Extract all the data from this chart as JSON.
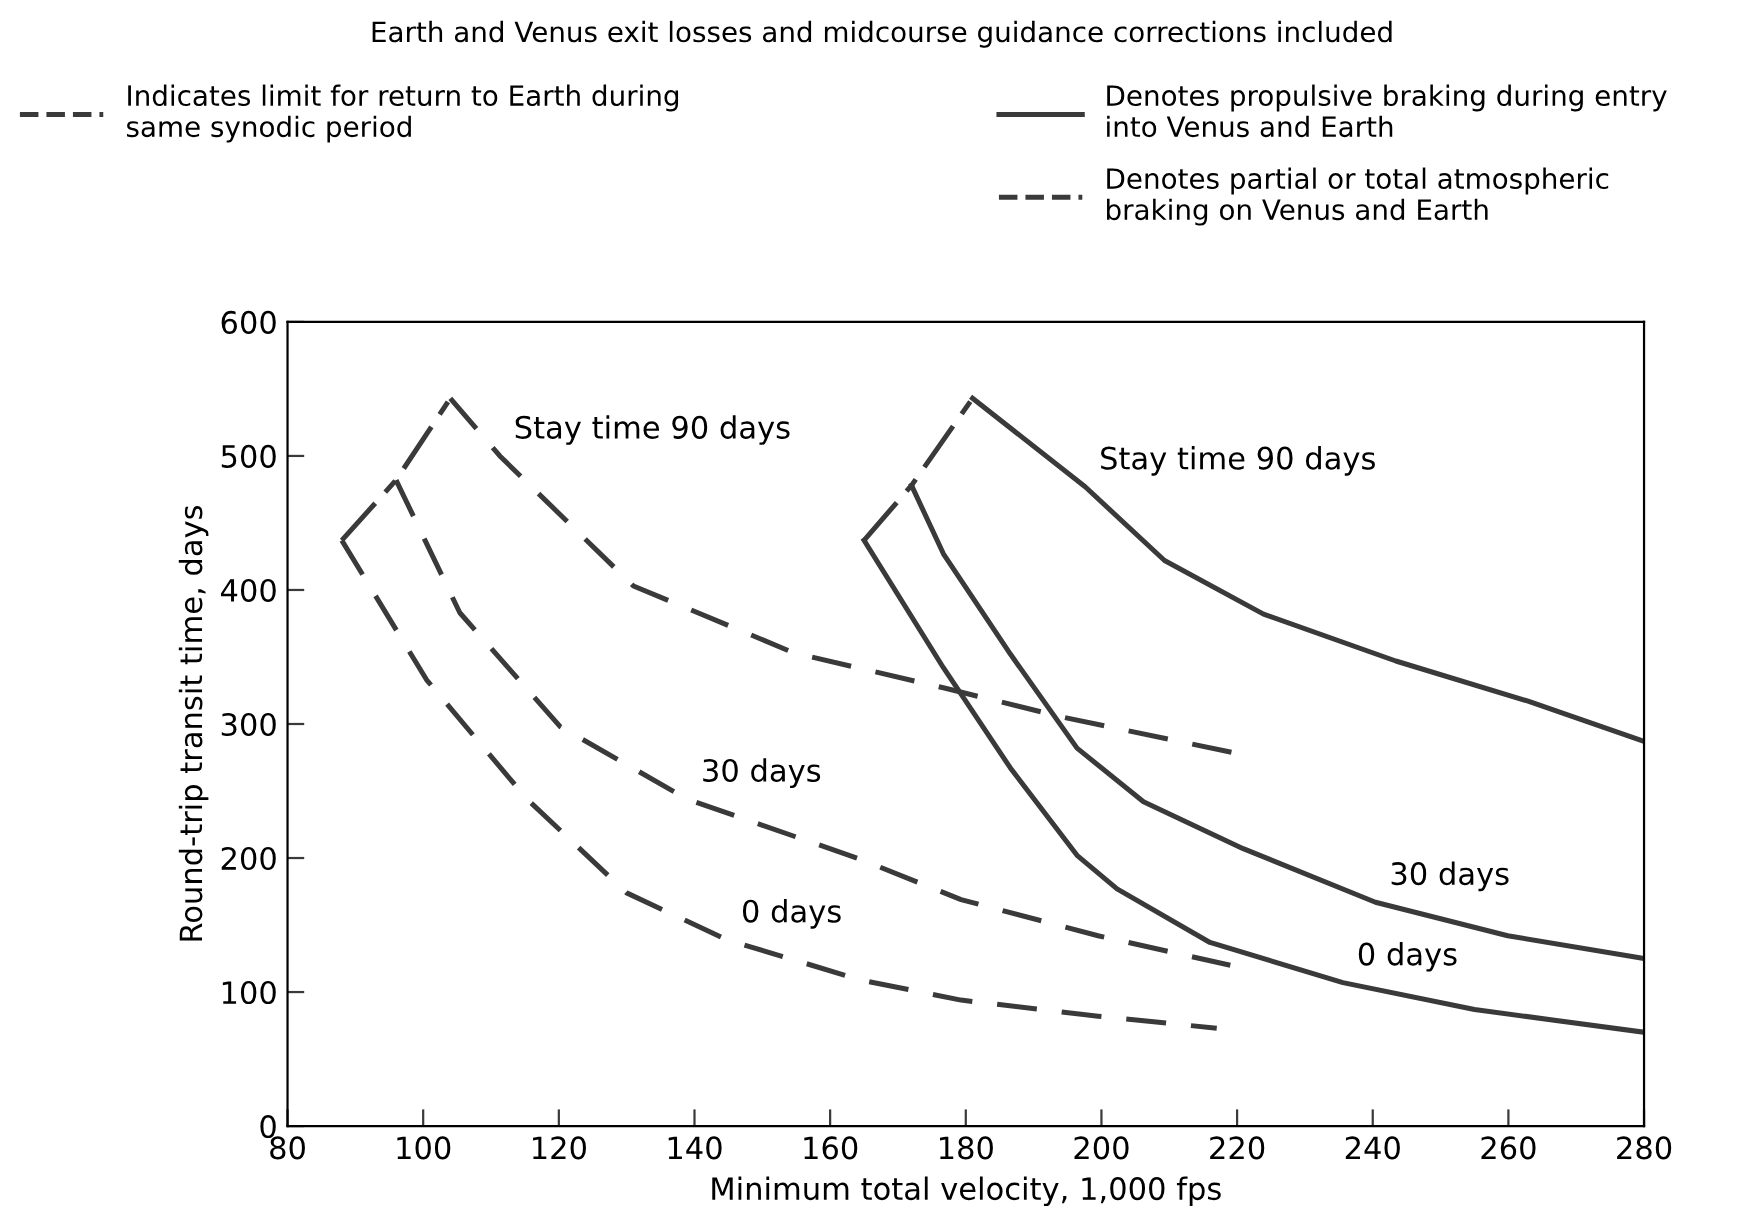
{
  "chart_data": {
    "type": "line",
    "title": "Earth and Venus exit losses and midcourse guidance corrections included",
    "xlabel": "Minimum total velocity, 1,000 fps",
    "ylabel": "Round-trip transit time, days",
    "xlim": [
      80,
      280
    ],
    "xticks": [
      80,
      100,
      120,
      140,
      160,
      180,
      200,
      220,
      240,
      260,
      280
    ],
    "ylim": [
      0,
      600
    ],
    "yticks": [
      0,
      100,
      200,
      300,
      400,
      500,
      600
    ],
    "grid": false,
    "legend": "top",
    "marker": "none",
    "series": [
      {
        "name": "Indicates limit for return to Earth during\nsame synodic period",
        "color": "#3a3a3a",
        "line_style": "dashdot",
        "x": [
          88,
          96,
          104,
          null,
          165,
          172,
          181
        ],
        "values": [
          437,
          482,
          543,
          null,
          437,
          478,
          543
        ]
      },
      {
        "name": "Denotes propulsive braking during entry\ninto Venus and Earth",
        "color": "#3a3a3a",
        "line_style": "solid",
        "x": [
          181,
          197.6,
          209.3,
          223.9,
          243.4,
          262.9,
          280,
          null,
          172,
          176.7,
          186.6,
          196.4,
          206.2,
          220.9,
          240.4,
          259.9,
          280,
          null,
          165,
          176.7,
          186.6,
          196.4,
          202.3,
          216,
          235.6,
          255,
          280
        ],
        "values": [
          543,
          477,
          422,
          382,
          347,
          317,
          287,
          null,
          478,
          427,
          352,
          282,
          242,
          207,
          167,
          142,
          125,
          null,
          437,
          342,
          267,
          202,
          177,
          137,
          107,
          87,
          70
        ]
      },
      {
        "name": "Denotes partial or total atmospheric\nbraking on Venus and Earth",
        "color": "#3a3a3a",
        "line_style": "dashed",
        "x": [
          104,
          111.3,
          131,
          154.7,
          176.7,
          194.4,
          220,
          null,
          96,
          105.4,
          120.2,
          138.9,
          164.5,
          179.3,
          199.5,
          219,
          null,
          88,
          100.5,
          115.3,
          130,
          144.8,
          164.5,
          179.3,
          199.5,
          217
        ],
        "values": [
          543,
          500,
          403,
          353,
          327,
          305,
          278,
          null,
          482,
          383,
          298,
          244,
          199,
          169,
          142,
          120,
          null,
          437,
          333,
          244,
          174,
          139,
          109,
          94,
          82,
          73
        ]
      }
    ],
    "annotations": [
      {
        "text": "Stay time 90 days",
        "x": 111.3,
        "y": 500
      },
      {
        "text": "Stay time 90 days",
        "x": 197.6,
        "y": 477
      },
      {
        "text": "30 days",
        "x": 138.9,
        "y": 244
      },
      {
        "text": "30 days",
        "x": 240.4,
        "y": 167
      },
      {
        "text": "0 days",
        "x": 144.8,
        "y": 139
      },
      {
        "text": "0 days",
        "x": 235.6,
        "y": 107
      }
    ]
  }
}
